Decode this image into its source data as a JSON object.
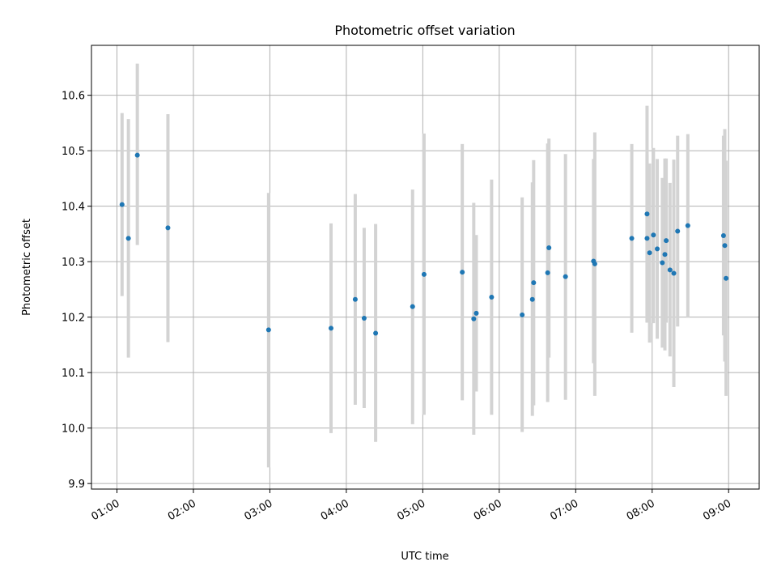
{
  "chart_data": {
    "type": "scatter",
    "title": "Photometric offset variation",
    "xlabel": "UTC time",
    "ylabel": "Photometric offset",
    "x_type": "time",
    "xlim": [
      "00:40",
      "09:24"
    ],
    "ylim": [
      9.89,
      10.69
    ],
    "x_ticks": [
      "01:00",
      "02:00",
      "03:00",
      "04:00",
      "05:00",
      "06:00",
      "07:00",
      "08:00",
      "09:00"
    ],
    "y_ticks": [
      9.9,
      10.0,
      10.1,
      10.2,
      10.3,
      10.4,
      10.5,
      10.6
    ],
    "y_tick_labels": [
      "9.9",
      "10.0",
      "10.1",
      "10.2",
      "10.3",
      "10.4",
      "10.5",
      "10.6"
    ],
    "grid": true,
    "colors": {
      "point": "#1f77b4",
      "errorbar": "#d3d3d3",
      "grid": "#b0b0b0"
    },
    "points": [
      {
        "t": "01:04",
        "y": 10.403,
        "lo": 10.238,
        "hi": 10.568
      },
      {
        "t": "01:09",
        "y": 10.342,
        "lo": 10.127,
        "hi": 10.557
      },
      {
        "t": "01:16",
        "y": 10.492,
        "lo": 10.33,
        "hi": 10.657
      },
      {
        "t": "01:40",
        "y": 10.361,
        "lo": 10.155,
        "hi": 10.566
      },
      {
        "t": "02:59",
        "y": 10.177,
        "lo": 9.929,
        "hi": 10.424
      },
      {
        "t": "03:48",
        "y": 10.18,
        "lo": 9.991,
        "hi": 10.369
      },
      {
        "t": "04:07",
        "y": 10.232,
        "lo": 10.042,
        "hi": 10.422
      },
      {
        "t": "04:14",
        "y": 10.198,
        "lo": 10.036,
        "hi": 10.361
      },
      {
        "t": "04:23",
        "y": 10.171,
        "lo": 9.975,
        "hi": 10.368
      },
      {
        "t": "04:52",
        "y": 10.219,
        "lo": 10.007,
        "hi": 10.43
      },
      {
        "t": "05:01",
        "y": 10.277,
        "lo": 10.024,
        "hi": 10.531
      },
      {
        "t": "05:31",
        "y": 10.281,
        "lo": 10.05,
        "hi": 10.512
      },
      {
        "t": "05:40",
        "y": 10.197,
        "lo": 9.988,
        "hi": 10.406
      },
      {
        "t": "05:42",
        "y": 10.207,
        "lo": 10.066,
        "hi": 10.348
      },
      {
        "t": "05:54",
        "y": 10.236,
        "lo": 10.024,
        "hi": 10.448
      },
      {
        "t": "06:18",
        "y": 10.204,
        "lo": 9.993,
        "hi": 10.416
      },
      {
        "t": "06:26",
        "y": 10.232,
        "lo": 10.022,
        "hi": 10.443
      },
      {
        "t": "06:27",
        "y": 10.262,
        "lo": 10.041,
        "hi": 10.483
      },
      {
        "t": "06:38",
        "y": 10.28,
        "lo": 10.047,
        "hi": 10.513
      },
      {
        "t": "06:39",
        "y": 10.325,
        "lo": 10.127,
        "hi": 10.522
      },
      {
        "t": "06:52",
        "y": 10.273,
        "lo": 10.051,
        "hi": 10.494
      },
      {
        "t": "07:14",
        "y": 10.301,
        "lo": 10.117,
        "hi": 10.485
      },
      {
        "t": "07:15",
        "y": 10.296,
        "lo": 10.058,
        "hi": 10.533
      },
      {
        "t": "07:44",
        "y": 10.342,
        "lo": 10.172,
        "hi": 10.512
      },
      {
        "t": "07:56",
        "y": 10.386,
        "lo": 10.19,
        "hi": 10.581
      },
      {
        "t": "07:56",
        "y": 10.342,
        "lo": 10.191,
        "hi": 10.494
      },
      {
        "t": "07:58",
        "y": 10.316,
        "lo": 10.154,
        "hi": 10.477
      },
      {
        "t": "08:01",
        "y": 10.348,
        "lo": 10.189,
        "hi": 10.505
      },
      {
        "t": "08:04",
        "y": 10.323,
        "lo": 10.161,
        "hi": 10.485
      },
      {
        "t": "08:08",
        "y": 10.298,
        "lo": 10.145,
        "hi": 10.451
      },
      {
        "t": "08:10",
        "y": 10.313,
        "lo": 10.14,
        "hi": 10.486
      },
      {
        "t": "08:11",
        "y": 10.338,
        "lo": 10.19,
        "hi": 10.486
      },
      {
        "t": "08:14",
        "y": 10.285,
        "lo": 10.129,
        "hi": 10.442
      },
      {
        "t": "08:17",
        "y": 10.279,
        "lo": 10.074,
        "hi": 10.484
      },
      {
        "t": "08:20",
        "y": 10.355,
        "lo": 10.183,
        "hi": 10.527
      },
      {
        "t": "08:28",
        "y": 10.365,
        "lo": 10.199,
        "hi": 10.53
      },
      {
        "t": "08:56",
        "y": 10.347,
        "lo": 10.167,
        "hi": 10.527
      },
      {
        "t": "08:57",
        "y": 10.329,
        "lo": 10.12,
        "hi": 10.539
      },
      {
        "t": "08:58",
        "y": 10.27,
        "lo": 10.058,
        "hi": 10.482
      }
    ]
  }
}
